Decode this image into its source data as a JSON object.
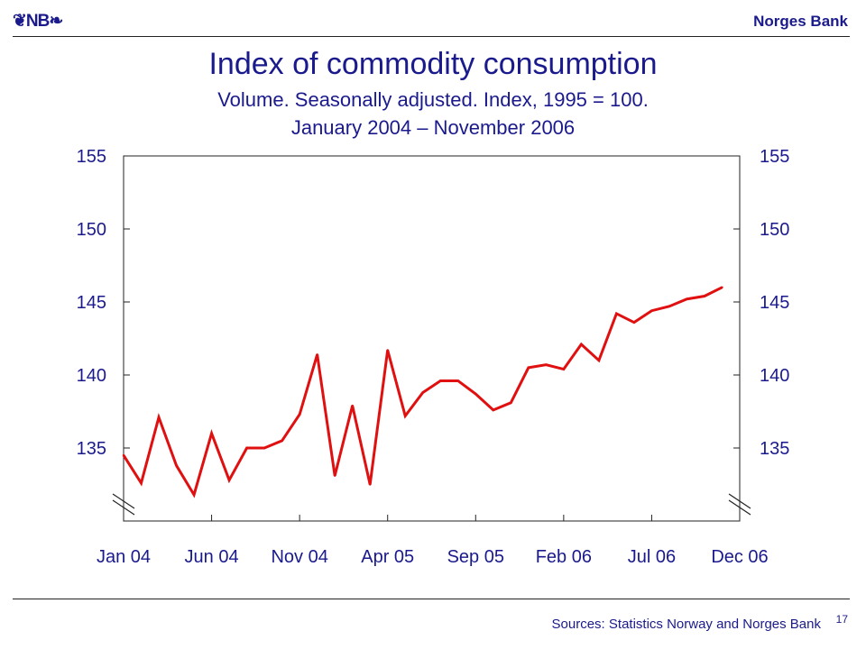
{
  "header": {
    "logo_text": "❦NB❧",
    "bank_name": "Norges Bank"
  },
  "footer": {
    "source": "Sources: Statistics Norway and Norges Bank",
    "page_number": "17"
  },
  "chart_data": {
    "type": "line",
    "title": "Index of commodity consumption",
    "subtitle": [
      "Volume. Seasonally adjusted. Index, 1995 = 100.",
      "January 2004 – November 2006"
    ],
    "xlabel": "",
    "ylabel": "",
    "ylim": [
      130,
      155
    ],
    "yticks": [
      135,
      140,
      145,
      150,
      155
    ],
    "xtick_labels": [
      "Jan 04",
      "Jun 04",
      "Nov 04",
      "Apr 05",
      "Sep 05",
      "Feb 06",
      "Jul 06",
      "Dec 06"
    ],
    "x": [
      "Jan 04",
      "Feb 04",
      "Mar 04",
      "Apr 04",
      "May 04",
      "Jun 04",
      "Jul 04",
      "Aug 04",
      "Sep 04",
      "Oct 04",
      "Nov 04",
      "Dec 04",
      "Jan 05",
      "Feb 05",
      "Mar 05",
      "Apr 05",
      "May 05",
      "Jun 05",
      "Jul 05",
      "Aug 05",
      "Sep 05",
      "Oct 05",
      "Nov 05",
      "Dec 05",
      "Jan 06",
      "Feb 06",
      "Mar 06",
      "Apr 06",
      "May 06",
      "Jun 06",
      "Jul 06",
      "Aug 06",
      "Sep 06",
      "Oct 06",
      "Nov 06"
    ],
    "series": [
      {
        "color": "#e01010",
        "values": [
          134.5,
          132.6,
          137.1,
          133.8,
          131.8,
          136.0,
          132.8,
          135.0,
          135.0,
          135.5,
          137.3,
          141.4,
          133.1,
          137.9,
          132.5,
          141.7,
          137.2,
          138.8,
          139.6,
          139.6,
          138.7,
          137.6,
          138.1,
          140.5,
          140.7,
          140.4,
          142.1,
          141.0,
          144.2,
          143.6,
          144.4,
          144.7,
          145.2,
          145.4,
          146.0
        ]
      }
    ],
    "grid": false,
    "legend": "none",
    "dual_y_axis": true
  }
}
